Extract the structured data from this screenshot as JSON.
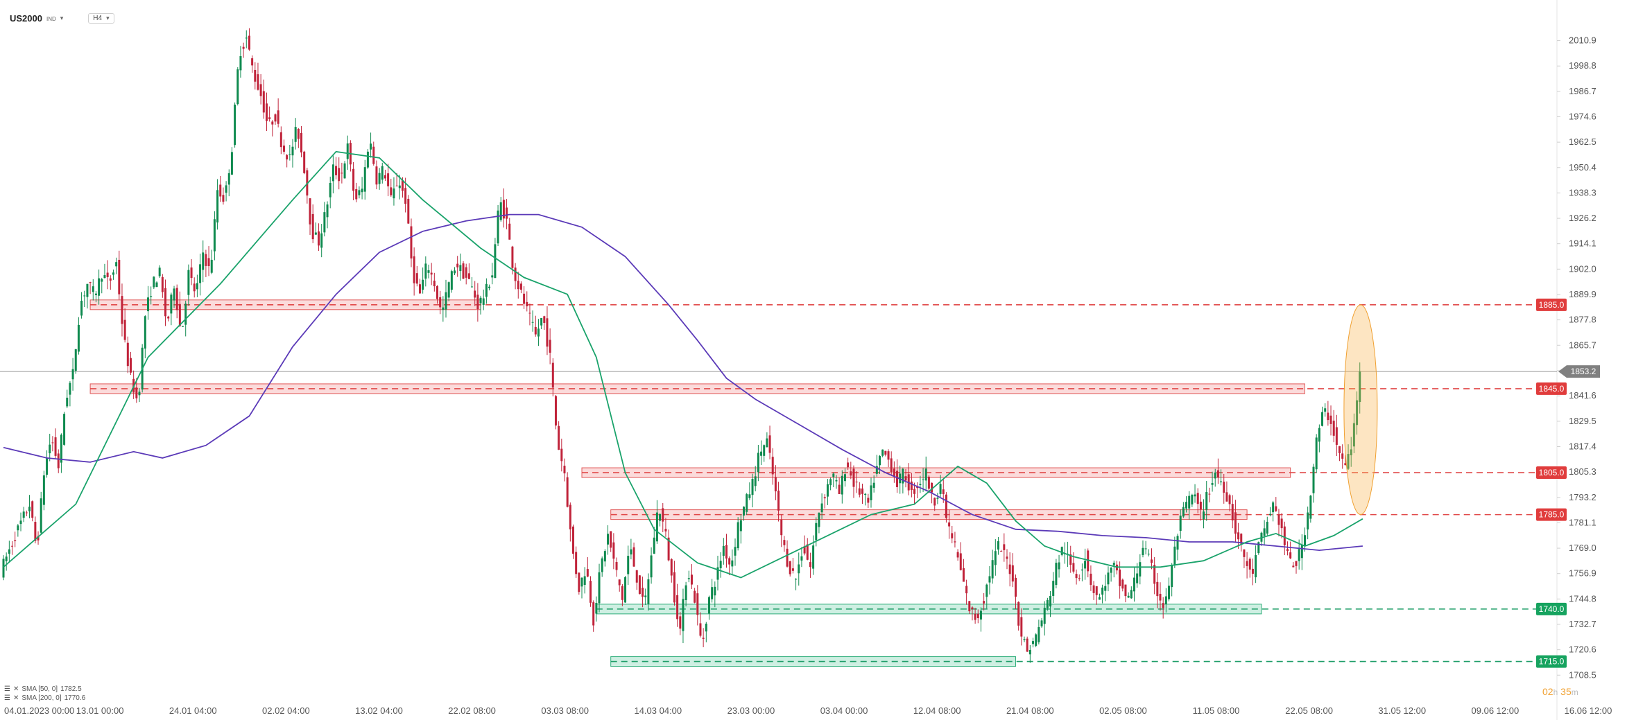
{
  "header": {
    "symbol": "US2000",
    "symbol_type": "IND",
    "timeframe": "H4"
  },
  "legend": [
    {
      "label": "SMA [50, 0]",
      "value": "1782.5",
      "color": "#1aa36b"
    },
    {
      "label": "SMA [200, 0]",
      "value": "1770.6",
      "color": "#5b3ab8"
    }
  ],
  "timer": {
    "hours": "02",
    "h_unit": "h",
    "minutes": "35",
    "m_unit": "m"
  },
  "chart_data": {
    "type": "candlestick",
    "ylim": [
      1700.0,
      2021.0
    ],
    "y_ticks": [
      "2010.9",
      "1998.8",
      "1986.7",
      "1974.6",
      "1962.5",
      "1950.4",
      "1938.3",
      "1926.2",
      "1914.1",
      "1902.0",
      "1889.9",
      "1877.8",
      "1865.7",
      "1853.6",
      "1841.6",
      "1829.5",
      "1817.4",
      "1805.3",
      "1793.2",
      "1781.1",
      "1769.0",
      "1756.9",
      "1744.8",
      "1732.7",
      "1720.6",
      "1708.5"
    ],
    "x_ticks": [
      "04.01.2023 00:00",
      "13.01 00:00",
      "24.01 04:00",
      "02.02 04:00",
      "13.02 04:00",
      "22.02 08:00",
      "03.03 08:00",
      "14.03 04:00",
      "23.03 00:00",
      "03.04 00:00",
      "12.04 08:00",
      "21.04 08:00",
      "02.05 08:00",
      "11.05 08:00",
      "22.05 08:00",
      "31.05 12:00",
      "09.06 12:00",
      "16.06 12:00"
    ],
    "current_price": "1853.2",
    "current_price_value": 1853.2,
    "levels": [
      {
        "label": "1885.0",
        "value": 1885.0,
        "kind": "resistance",
        "zone_start": 0.06,
        "zone_end": 0.33
      },
      {
        "label": "1845.0",
        "value": 1845.0,
        "kind": "resistance",
        "zone_start": 0.06,
        "zone_end": 0.9
      },
      {
        "label": "1805.0",
        "value": 1805.0,
        "kind": "resistance",
        "zone_start": 0.4,
        "zone_end": 0.89
      },
      {
        "label": "1785.0",
        "value": 1785.0,
        "kind": "resistance",
        "zone_start": 0.42,
        "zone_end": 0.86
      },
      {
        "label": "1740.0",
        "value": 1740.0,
        "kind": "support",
        "zone_start": 0.41,
        "zone_end": 0.87
      },
      {
        "label": "1715.0",
        "value": 1715.0,
        "kind": "support",
        "zone_start": 0.42,
        "zone_end": 0.7
      }
    ],
    "price_path": [
      [
        0.0,
        1758
      ],
      [
        0.01,
        1775
      ],
      [
        0.02,
        1790
      ],
      [
        0.025,
        1768
      ],
      [
        0.03,
        1805
      ],
      [
        0.035,
        1822
      ],
      [
        0.04,
        1808
      ],
      [
        0.045,
        1840
      ],
      [
        0.05,
        1852
      ],
      [
        0.055,
        1885
      ],
      [
        0.06,
        1895
      ],
      [
        0.065,
        1890
      ],
      [
        0.07,
        1900
      ],
      [
        0.075,
        1895
      ],
      [
        0.08,
        1905
      ],
      [
        0.085,
        1870
      ],
      [
        0.09,
        1850
      ],
      [
        0.095,
        1838
      ],
      [
        0.1,
        1880
      ],
      [
        0.105,
        1895
      ],
      [
        0.11,
        1900
      ],
      [
        0.115,
        1875
      ],
      [
        0.12,
        1895
      ],
      [
        0.125,
        1870
      ],
      [
        0.13,
        1900
      ],
      [
        0.135,
        1890
      ],
      [
        0.14,
        1910
      ],
      [
        0.145,
        1900
      ],
      [
        0.15,
        1940
      ],
      [
        0.155,
        1935
      ],
      [
        0.16,
        1960
      ],
      [
        0.165,
        2005
      ],
      [
        0.17,
        2012
      ],
      [
        0.175,
        1995
      ],
      [
        0.18,
        1985
      ],
      [
        0.185,
        1970
      ],
      [
        0.19,
        1975
      ],
      [
        0.195,
        1960
      ],
      [
        0.2,
        1955
      ],
      [
        0.205,
        1970
      ],
      [
        0.21,
        1950
      ],
      [
        0.215,
        1920
      ],
      [
        0.22,
        1915
      ],
      [
        0.225,
        1930
      ],
      [
        0.23,
        1950
      ],
      [
        0.235,
        1945
      ],
      [
        0.24,
        1960
      ],
      [
        0.245,
        1935
      ],
      [
        0.25,
        1940
      ],
      [
        0.255,
        1965
      ],
      [
        0.26,
        1945
      ],
      [
        0.265,
        1950
      ],
      [
        0.27,
        1935
      ],
      [
        0.275,
        1945
      ],
      [
        0.28,
        1935
      ],
      [
        0.285,
        1900
      ],
      [
        0.29,
        1890
      ],
      [
        0.295,
        1905
      ],
      [
        0.3,
        1895
      ],
      [
        0.305,
        1880
      ],
      [
        0.31,
        1895
      ],
      [
        0.315,
        1905
      ],
      [
        0.32,
        1900
      ],
      [
        0.325,
        1895
      ],
      [
        0.33,
        1885
      ],
      [
        0.335,
        1890
      ],
      [
        0.34,
        1900
      ],
      [
        0.345,
        1935
      ],
      [
        0.35,
        1925
      ],
      [
        0.355,
        1900
      ],
      [
        0.36,
        1890
      ],
      [
        0.365,
        1880
      ],
      [
        0.37,
        1870
      ],
      [
        0.375,
        1880
      ],
      [
        0.38,
        1860
      ],
      [
        0.385,
        1820
      ],
      [
        0.39,
        1805
      ],
      [
        0.395,
        1770
      ],
      [
        0.4,
        1750
      ],
      [
        0.405,
        1760
      ],
      [
        0.41,
        1735
      ],
      [
        0.415,
        1760
      ],
      [
        0.42,
        1775
      ],
      [
        0.425,
        1760
      ],
      [
        0.43,
        1745
      ],
      [
        0.435,
        1770
      ],
      [
        0.44,
        1755
      ],
      [
        0.445,
        1740
      ],
      [
        0.45,
        1765
      ],
      [
        0.455,
        1790
      ],
      [
        0.46,
        1775
      ],
      [
        0.465,
        1750
      ],
      [
        0.47,
        1730
      ],
      [
        0.475,
        1760
      ],
      [
        0.48,
        1745
      ],
      [
        0.485,
        1722
      ],
      [
        0.49,
        1745
      ],
      [
        0.495,
        1755
      ],
      [
        0.5,
        1770
      ],
      [
        0.505,
        1760
      ],
      [
        0.51,
        1780
      ],
      [
        0.515,
        1790
      ],
      [
        0.52,
        1800
      ],
      [
        0.525,
        1815
      ],
      [
        0.53,
        1820
      ],
      [
        0.535,
        1800
      ],
      [
        0.54,
        1775
      ],
      [
        0.545,
        1760
      ],
      [
        0.55,
        1755
      ],
      [
        0.555,
        1770
      ],
      [
        0.56,
        1760
      ],
      [
        0.565,
        1785
      ],
      [
        0.57,
        1795
      ],
      [
        0.575,
        1805
      ],
      [
        0.58,
        1795
      ],
      [
        0.585,
        1810
      ],
      [
        0.59,
        1800
      ],
      [
        0.595,
        1795
      ],
      [
        0.6,
        1790
      ],
      [
        0.605,
        1805
      ],
      [
        0.61,
        1815
      ],
      [
        0.615,
        1810
      ],
      [
        0.62,
        1800
      ],
      [
        0.625,
        1805
      ],
      [
        0.63,
        1795
      ],
      [
        0.635,
        1800
      ],
      [
        0.64,
        1805
      ],
      [
        0.645,
        1790
      ],
      [
        0.65,
        1800
      ],
      [
        0.655,
        1780
      ],
      [
        0.66,
        1770
      ],
      [
        0.665,
        1755
      ],
      [
        0.67,
        1740
      ],
      [
        0.675,
        1735
      ],
      [
        0.68,
        1745
      ],
      [
        0.685,
        1760
      ],
      [
        0.69,
        1770
      ],
      [
        0.695,
        1765
      ],
      [
        0.7,
        1755
      ],
      [
        0.705,
        1730
      ],
      [
        0.71,
        1720
      ],
      [
        0.715,
        1725
      ],
      [
        0.72,
        1735
      ],
      [
        0.725,
        1745
      ],
      [
        0.73,
        1760
      ],
      [
        0.735,
        1770
      ],
      [
        0.74,
        1760
      ],
      [
        0.745,
        1755
      ],
      [
        0.75,
        1765
      ],
      [
        0.755,
        1750
      ],
      [
        0.76,
        1745
      ],
      [
        0.765,
        1755
      ],
      [
        0.77,
        1760
      ],
      [
        0.775,
        1750
      ],
      [
        0.78,
        1745
      ],
      [
        0.785,
        1755
      ],
      [
        0.79,
        1770
      ],
      [
        0.795,
        1762
      ],
      [
        0.8,
        1748
      ],
      [
        0.805,
        1740
      ],
      [
        0.81,
        1760
      ],
      [
        0.815,
        1780
      ],
      [
        0.82,
        1790
      ],
      [
        0.825,
        1795
      ],
      [
        0.83,
        1785
      ],
      [
        0.835,
        1795
      ],
      [
        0.84,
        1805
      ],
      [
        0.845,
        1800
      ],
      [
        0.85,
        1790
      ],
      [
        0.855,
        1775
      ],
      [
        0.86,
        1765
      ],
      [
        0.865,
        1755
      ],
      [
        0.87,
        1770
      ],
      [
        0.875,
        1780
      ],
      [
        0.88,
        1790
      ],
      [
        0.885,
        1780
      ],
      [
        0.89,
        1765
      ],
      [
        0.895,
        1760
      ],
      [
        0.9,
        1770
      ],
      [
        0.905,
        1790
      ],
      [
        0.91,
        1820
      ],
      [
        0.915,
        1835
      ],
      [
        0.92,
        1830
      ],
      [
        0.925,
        1815
      ],
      [
        0.93,
        1808
      ],
      [
        0.935,
        1820
      ],
      [
        0.94,
        1853.2
      ]
    ],
    "sma50_path": [
      [
        0.0,
        1760
      ],
      [
        0.05,
        1790
      ],
      [
        0.1,
        1860
      ],
      [
        0.15,
        1895
      ],
      [
        0.2,
        1935
      ],
      [
        0.23,
        1958
      ],
      [
        0.26,
        1955
      ],
      [
        0.29,
        1935
      ],
      [
        0.33,
        1912
      ],
      [
        0.36,
        1898
      ],
      [
        0.39,
        1890
      ],
      [
        0.41,
        1860
      ],
      [
        0.43,
        1805
      ],
      [
        0.45,
        1778
      ],
      [
        0.48,
        1762
      ],
      [
        0.51,
        1755
      ],
      [
        0.54,
        1765
      ],
      [
        0.57,
        1775
      ],
      [
        0.6,
        1785
      ],
      [
        0.63,
        1790
      ],
      [
        0.66,
        1808
      ],
      [
        0.68,
        1800
      ],
      [
        0.7,
        1782
      ],
      [
        0.72,
        1770
      ],
      [
        0.74,
        1765
      ],
      [
        0.77,
        1760
      ],
      [
        0.8,
        1760
      ],
      [
        0.83,
        1763
      ],
      [
        0.86,
        1772
      ],
      [
        0.88,
        1776
      ],
      [
        0.9,
        1770
      ],
      [
        0.92,
        1775
      ],
      [
        0.94,
        1783
      ]
    ],
    "sma200_path": [
      [
        0.0,
        1817
      ],
      [
        0.03,
        1812
      ],
      [
        0.06,
        1810
      ],
      [
        0.09,
        1815
      ],
      [
        0.11,
        1812
      ],
      [
        0.14,
        1818
      ],
      [
        0.17,
        1832
      ],
      [
        0.2,
        1865
      ],
      [
        0.23,
        1890
      ],
      [
        0.26,
        1910
      ],
      [
        0.29,
        1920
      ],
      [
        0.32,
        1925
      ],
      [
        0.35,
        1928
      ],
      [
        0.37,
        1928
      ],
      [
        0.4,
        1922
      ],
      [
        0.43,
        1908
      ],
      [
        0.46,
        1885
      ],
      [
        0.48,
        1868
      ],
      [
        0.5,
        1850
      ],
      [
        0.52,
        1840
      ],
      [
        0.55,
        1828
      ],
      [
        0.58,
        1816
      ],
      [
        0.61,
        1805
      ],
      [
        0.64,
        1796
      ],
      [
        0.67,
        1785
      ],
      [
        0.7,
        1778
      ],
      [
        0.73,
        1777
      ],
      [
        0.76,
        1775
      ],
      [
        0.79,
        1774
      ],
      [
        0.82,
        1772
      ],
      [
        0.85,
        1772
      ],
      [
        0.88,
        1770
      ],
      [
        0.91,
        1768
      ],
      [
        0.94,
        1770
      ]
    ]
  }
}
